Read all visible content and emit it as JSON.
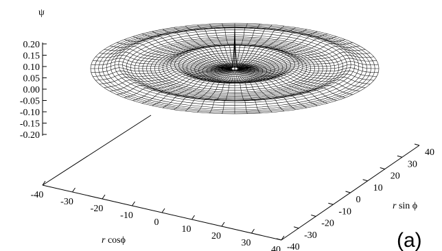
{
  "chart_data": {
    "type": "surface",
    "title": "",
    "zlabel": "ψ",
    "xlabel_prefix": "r",
    "xlabel_suffix": " cosϕ",
    "ylabel_prefix": "r",
    "ylabel_suffix": " sin ϕ",
    "panel_label": "(a)",
    "zlim": [
      -0.2,
      0.2
    ],
    "z_ticks": [
      "0.20",
      "0.15",
      "0.10",
      "0.05",
      "0.00",
      "-0.05",
      "-0.10",
      "-0.15",
      "-0.20"
    ],
    "xlim": [
      -40,
      40
    ],
    "x_ticks": [
      "-40",
      "-30",
      "-20",
      "-10",
      "0",
      "10",
      "20",
      "30",
      "40"
    ],
    "ylim": [
      -40,
      40
    ],
    "y_ticks": [
      "-40",
      "-30",
      "-20",
      "-10",
      "0",
      "10",
      "20",
      "30",
      "40"
    ],
    "surface": {
      "radius": 36,
      "peak_psi": 0.2,
      "ring_radii": [
        15,
        29
      ],
      "ring_amplitude": 0.02
    }
  }
}
